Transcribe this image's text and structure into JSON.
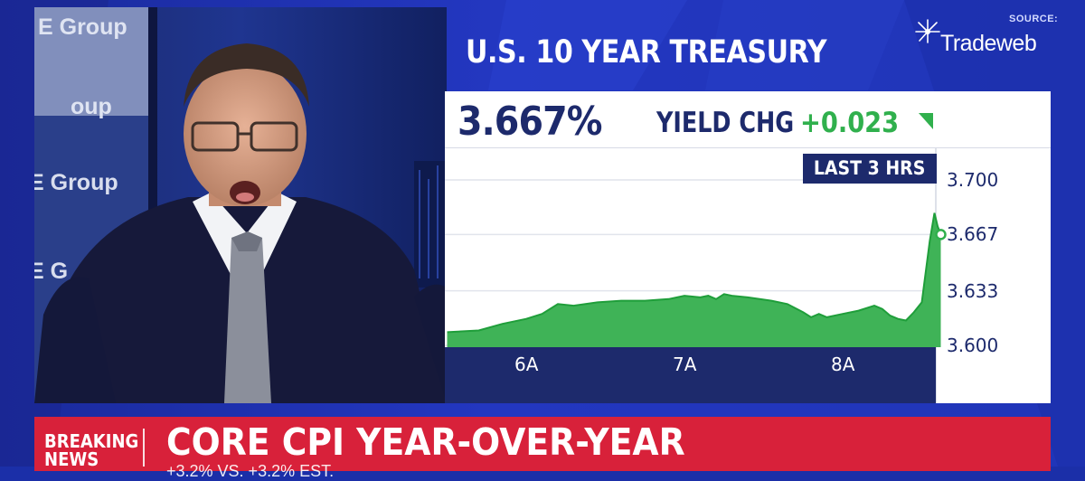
{
  "broadcast": {
    "headline": "U.S. 10 YEAR TREASURY",
    "source_label": "SOURCE:",
    "source_name": "Tradeweb"
  },
  "video": {
    "wall_texts": [
      "E Group",
      "oup",
      "E Group",
      "E G"
    ]
  },
  "quote": {
    "price": "3.667%",
    "change_label": "YIELD CHG",
    "change_value": "+0.023",
    "change_direction": "up",
    "change_color": "#30b04d"
  },
  "chart_data": {
    "type": "area",
    "range_label": "LAST 3 HRS",
    "y_ticks": [
      "3.700",
      "3.667",
      "3.633",
      "3.600"
    ],
    "x_ticks": [
      "6A",
      "7A",
      "8A"
    ],
    "ylim": [
      3.6,
      3.7
    ],
    "x_hours": [
      5.5,
      5.7,
      5.85,
      6.0,
      6.1,
      6.2,
      6.3,
      6.45,
      6.6,
      6.75,
      6.9,
      7.0,
      7.1,
      7.15,
      7.2,
      7.25,
      7.3,
      7.4,
      7.55,
      7.65,
      7.75,
      7.8,
      7.85,
      7.9,
      8.0,
      8.1,
      8.2,
      8.25,
      8.3,
      8.35,
      8.4,
      8.45,
      8.5,
      8.55,
      8.58,
      8.6,
      8.62
    ],
    "values": [
      3.608,
      3.609,
      3.613,
      3.616,
      3.619,
      3.625,
      3.624,
      3.626,
      3.627,
      3.627,
      3.628,
      3.63,
      3.629,
      3.63,
      3.628,
      3.631,
      3.63,
      3.629,
      3.627,
      3.625,
      3.62,
      3.617,
      3.619,
      3.617,
      3.619,
      3.621,
      3.624,
      3.622,
      3.618,
      3.616,
      3.615,
      3.62,
      3.626,
      3.663,
      3.68,
      3.672,
      3.667
    ],
    "last_value": 3.667,
    "fill_color": "#3fb357",
    "line_color": "#1f9e3a"
  },
  "ticker": {
    "breaking_line1": "BREAKING",
    "breaking_line2": "NEWS",
    "title": "CORE CPI YEAR-OVER-YEAR",
    "subtitle": "+3.2% VS. +3.2% EST."
  }
}
